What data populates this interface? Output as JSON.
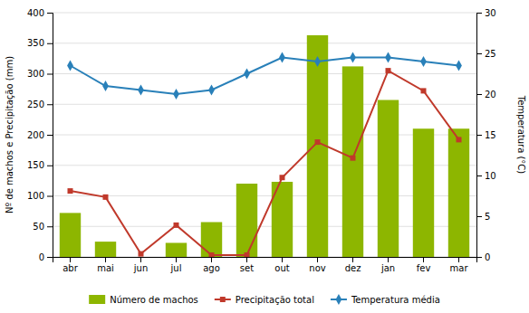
{
  "chart_data": {
    "type": "bar",
    "categories": [
      "abr",
      "mai",
      "jun",
      "jul",
      "ago",
      "set",
      "out",
      "nov",
      "dez",
      "jan",
      "fev",
      "mar"
    ],
    "series": [
      {
        "name": "Número de machos",
        "type": "bar",
        "color": "#8db600",
        "values": [
          72,
          25,
          0,
          23,
          57,
          120,
          123,
          363,
          312,
          257,
          210,
          210
        ]
      },
      {
        "name": "Precipitação total",
        "type": "line",
        "color": "#c0392b",
        "marker": "square",
        "values": [
          108,
          98,
          5,
          52,
          3,
          3,
          130,
          188,
          162,
          305,
          272,
          192
        ]
      },
      {
        "name": "Temperatura média",
        "type": "line",
        "color": "#2980b9",
        "marker": "diamond",
        "axis": "y2",
        "values": [
          23.5,
          21.0,
          20.5,
          20.0,
          20.5,
          22.5,
          24.5,
          24.0,
          24.5,
          24.5,
          24.0,
          23.5
        ]
      }
    ],
    "ylim": [
      0,
      400
    ],
    "yticks": [
      0,
      50,
      100,
      150,
      200,
      250,
      300,
      350,
      400
    ],
    "y2lim": [
      0,
      30
    ],
    "y2ticks": [
      0,
      5,
      10,
      15,
      20,
      25,
      30
    ],
    "ylabel": "Nº de machos e Precipitação (mm)",
    "y2label": "Temperatura (°C)",
    "grid": true,
    "legend": "bottom"
  }
}
